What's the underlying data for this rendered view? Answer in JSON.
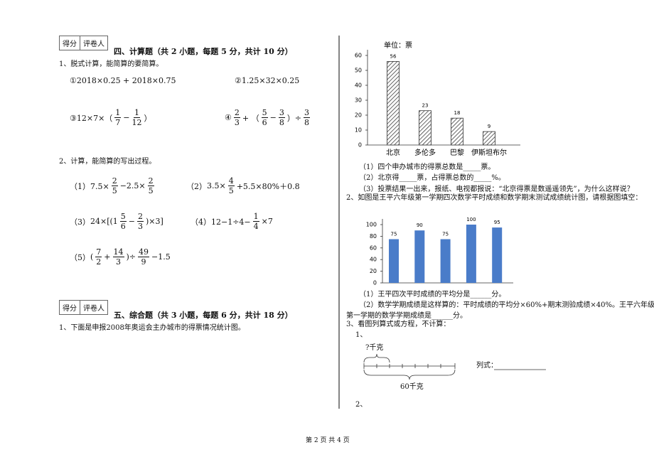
{
  "left": {
    "section4": {
      "score_label": "得分",
      "grader_label": "评卷人",
      "title": "四、计算题（共 2 小题，每题 5 分，共计 10 分）"
    },
    "q1": {
      "prompt": "1、脱式计算，能简算的要简算。",
      "items": [
        [
          "①2018×0.25 + 2018×0.75"
        ],
        [
          "②1.25×32×0.25"
        ],
        [
          "③12×7×（",
          {
            "n": "1",
            "d": "7"
          },
          "−",
          {
            "n": "1",
            "d": "12"
          },
          "）"
        ],
        [
          "④",
          {
            "n": "2",
            "d": "3"
          },
          "+ （",
          {
            "n": "5",
            "d": "6"
          },
          "−",
          {
            "n": "3",
            "d": "8"
          },
          "）÷",
          {
            "n": "3",
            "d": "8"
          }
        ]
      ]
    },
    "q2": {
      "prompt": "2、计算，能简算的写出过程。",
      "items": [
        [
          "（1）7.5×",
          {
            "n": "2",
            "d": "5"
          },
          "−2.5×",
          {
            "n": "2",
            "d": "5"
          }
        ],
        [
          "（2）",
          "3.5×",
          {
            "n": "4",
            "d": "5"
          },
          "+5.5×80%＋0.8"
        ],
        [
          "（3）",
          "24×[(1",
          {
            "n": "5",
            "d": "6"
          },
          "−",
          {
            "n": "2",
            "d": "3"
          },
          ")×3]"
        ],
        [
          "（4）12−1÷4−",
          {
            "n": "1",
            "d": "4"
          },
          "×7"
        ],
        [
          "（5）",
          "(",
          {
            "n": "7",
            "d": "2"
          },
          "+",
          {
            "n": "14",
            "d": "3"
          },
          ")÷",
          {
            "n": "49",
            "d": "9"
          },
          "−1.5"
        ]
      ]
    },
    "section5": {
      "score_label": "得分",
      "grader_label": "评卷人",
      "title": "五、综合题（共 3 小题，每题 6 分，共计 18 分）"
    },
    "q5_1": "1、下面是申报2008年奥运会主办城市的得票情况统计图。"
  },
  "right": {
    "q5_1_questions": [
      "（1）四个申办城市的得票总数是_____票。",
      "（2）北京得_____票，占得票总数的_____%。",
      "（3）投票结果一出来，报纸、电视都报说：“北京得票是数遥遥领先”，为什么这样说？"
    ],
    "q5_2": "2、如图是王平六年级第一学期四次数学平时成绩和数学期末测试成绩统计图，请根据图填空：",
    "q5_2_questions": [
      "（1）王平四次平时成绩的平均分是______分。",
      "（2）数学学期成绩是这样算的：平时成绩的平均分×60%+期末测验成绩×40%。王平六年级",
      "第一学期的数学学期成绩是______分。"
    ],
    "q5_3": "3、看图列算式或方程，不计算：",
    "sub1": "1、",
    "diagram": {
      "top": "?千克",
      "bottom": "60千克",
      "formula": "列式："
    },
    "sub2": "2、"
  },
  "chart_data": [
    {
      "type": "bar",
      "ylabel": "单位：票",
      "categories": [
        "北京",
        "多伦多",
        "巴黎",
        "伊斯坦布尔"
      ],
      "values": [
        56,
        23,
        18,
        9
      ],
      "color": "#333333",
      "ylim": [
        0,
        60
      ],
      "yticks": [
        0,
        10,
        20,
        30,
        40,
        50,
        60
      ]
    },
    {
      "type": "bar",
      "values": [
        75,
        90,
        75,
        100,
        95
      ],
      "color": "#4a7cc9",
      "ylim": [
        0,
        100
      ],
      "yticks": [
        0,
        20,
        40,
        60,
        80,
        100
      ]
    }
  ],
  "footer": "第 2 页 共 4 页"
}
